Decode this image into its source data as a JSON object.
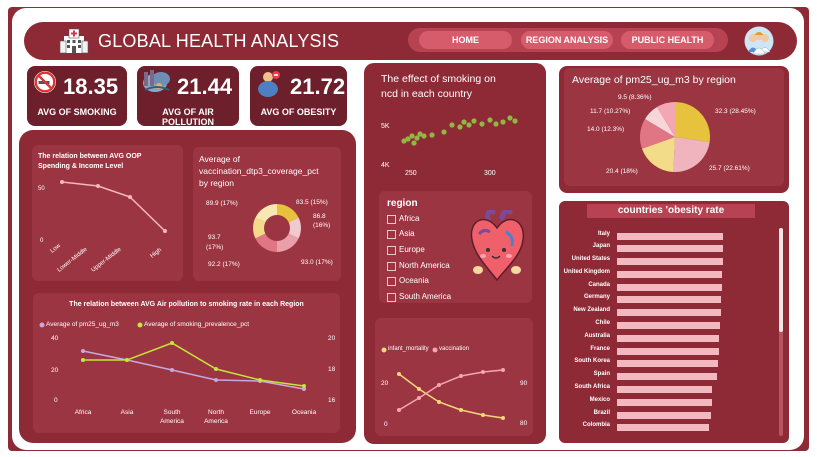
{
  "header": {
    "title": "GLOBAL HEALTH ANALYSIS",
    "nav": [
      "HOME",
      "REGION ANALYSIS",
      "PUBLIC HEALTH"
    ]
  },
  "kpis": [
    {
      "value": "18.35",
      "label": "AVG OF SMOKING",
      "icon": "no-smoking-icon"
    },
    {
      "value": "21.44",
      "label": "AVG OF AIR POLLUTION",
      "icon": "pollution-icon"
    },
    {
      "value": "21.72",
      "label": "AVG OF OBESITY",
      "icon": "obesity-icon"
    }
  ],
  "oop_chart": {
    "title_line1": "The relation between AVG OOP",
    "title_line2": "Spending & Income Level",
    "y_ticks": [
      "50",
      "0"
    ],
    "color": "#f7b7bf"
  },
  "vacc_chart": {
    "title_line1": "Average of",
    "title_line2": "vaccination_dtp3_coverage_pct",
    "title_line3": "by region",
    "labels": {
      "a": "89.9 (17%)",
      "b": "83.5 (15%)",
      "c1": "86.8",
      "c2": "(16%)",
      "d1": "93.7",
      "d2": "(17%)",
      "e": "92.2 (17%)",
      "f": "93.0 (17%)"
    }
  },
  "air_chart": {
    "title": "The relation between AVG Air pollution to smoking rate in each Region",
    "legend": [
      "Average of pm25_ug_m3",
      "Average of smoking_prevalence_pct"
    ],
    "left_ticks": [
      "40",
      "20",
      "0"
    ],
    "right_ticks": [
      "20",
      "18",
      "16"
    ],
    "colors": [
      "#c9a9dd",
      "#c6e43a"
    ]
  },
  "smoking_chart": {
    "title_line1": "The effect of smoking on",
    "title_line2": "ncd in each country",
    "y_ticks": [
      "5K",
      "4K"
    ],
    "x_ticks": [
      "250",
      "300"
    ],
    "point_color": "#8fb842"
  },
  "region_slicer": {
    "title": "region",
    "items": [
      "Africa",
      "Asia",
      "Europe",
      "North America",
      "Oceania",
      "South America"
    ]
  },
  "mortality_chart": {
    "legend": [
      "infant_mortality",
      "vaccination"
    ],
    "left_ticks": [
      "20",
      "0"
    ],
    "right_ticks": [
      "90",
      "80"
    ],
    "colors": [
      "#f6d77a",
      "#f4a7b2"
    ]
  },
  "pm25_chart": {
    "title": "Average of pm25_ug_m3 by region",
    "labels": {
      "a": "9.5 (8.36%)",
      "b": "11.7 (10.27%)",
      "c": "14.0 (12.3%)",
      "d": "32.3 (28.45%)",
      "e": "20.4 (18%)",
      "f": "25.7 (22.61%)"
    }
  },
  "obesity_chart": {
    "title": "countries 'obesity rate",
    "countries": [
      "Italy",
      "Japan",
      "United States",
      "United Kingdom",
      "Canada",
      "Germany",
      "New Zealand",
      "Chile",
      "Australia",
      "France",
      "South Korea",
      "Spain",
      "South Africa",
      "Mexico",
      "Brazil",
      "Colombia"
    ],
    "color": "#f4b9c0"
  }
}
